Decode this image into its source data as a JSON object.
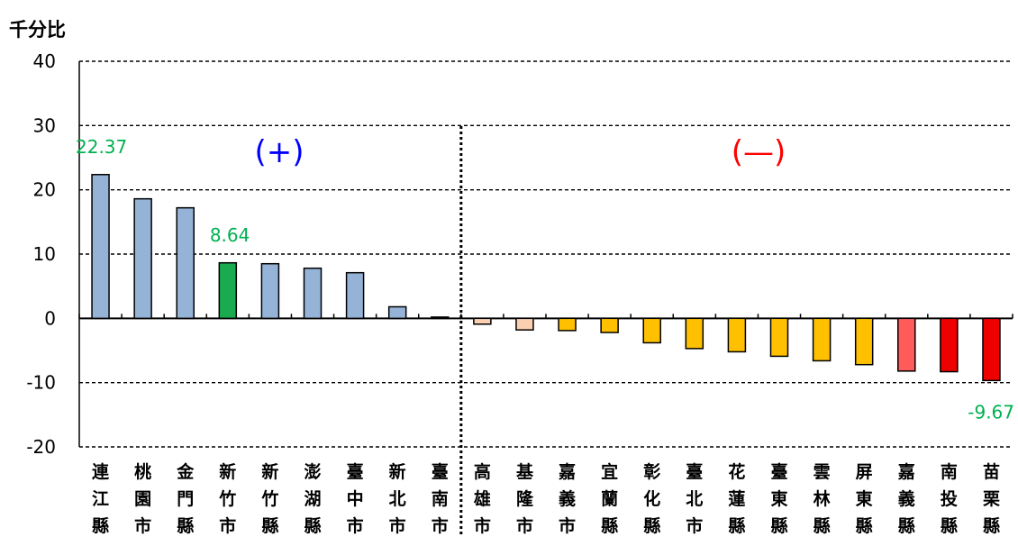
{
  "chart_data": {
    "type": "bar",
    "title": "",
    "ylabel": "千分比",
    "xlabel": "",
    "ylim": [
      -20,
      40
    ],
    "yticks": [
      -20,
      -10,
      0,
      10,
      20,
      30,
      40
    ],
    "grid": true,
    "categories": [
      "連江縣",
      "桃園市",
      "金門縣",
      "新竹市",
      "新竹縣",
      "澎湖縣",
      "臺中市",
      "新北市",
      "臺南市",
      "高雄市",
      "基隆市",
      "嘉義市",
      "宜蘭縣",
      "彰化縣",
      "臺北市",
      "花蓮縣",
      "臺東縣",
      "雲林縣",
      "屏東縣",
      "嘉義縣",
      "南投縣",
      "苗栗縣"
    ],
    "values": [
      22.37,
      18.6,
      17.2,
      8.64,
      8.5,
      7.8,
      7.1,
      1.8,
      0.2,
      -0.9,
      -1.8,
      -1.9,
      -2.2,
      -3.8,
      -4.7,
      -5.2,
      -5.9,
      -6.6,
      -7.2,
      -8.2,
      -8.3,
      -9.67
    ],
    "colors": [
      "#95b3d7",
      "#95b3d7",
      "#95b3d7",
      "#1aaa50",
      "#95b3d7",
      "#95b3d7",
      "#95b3d7",
      "#95b3d7",
      "#95b3d7",
      "#fbd0b0",
      "#fbd0b0",
      "#ffc000",
      "#ffc000",
      "#ffc000",
      "#ffc000",
      "#ffc000",
      "#ffc000",
      "#ffc000",
      "#ffc000",
      "#ff5b5b",
      "#ee0000",
      "#ee0000"
    ],
    "annotations": [
      {
        "index": 0,
        "text": "22.37",
        "color": "#00b050"
      },
      {
        "index": 3,
        "text": "8.64",
        "color": "#00b050"
      },
      {
        "index": 21,
        "text": "-9.67",
        "color": "#00b050"
      }
    ],
    "groups": [
      {
        "label": "(+)",
        "color": "#0000ff"
      },
      {
        "label": "(—)",
        "color": "#ff0000"
      }
    ],
    "divider_after_index": 8
  }
}
